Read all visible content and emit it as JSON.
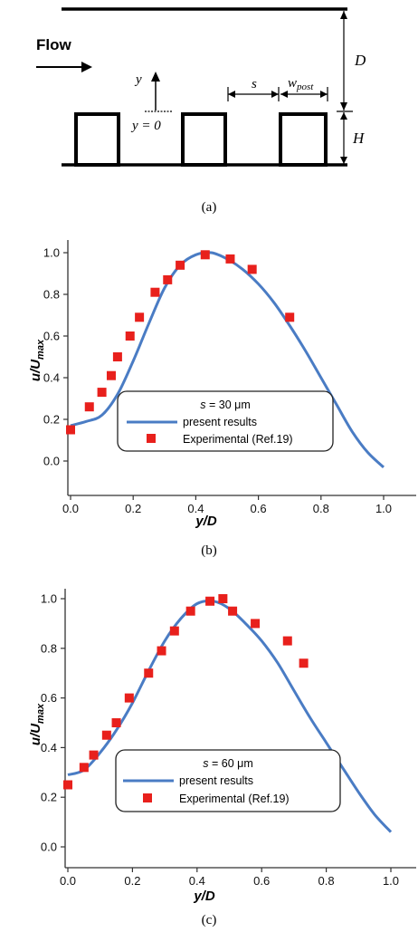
{
  "schematic": {
    "flow_label": "Flow",
    "y_axis_label": "y",
    "y_zero_label": "y = 0",
    "s_label": "s",
    "w_label": "w",
    "w_sub": "post",
    "D_label": "D",
    "H_label": "H"
  },
  "captions": {
    "a": "(a)",
    "b": "(b)",
    "c": "(c)"
  },
  "colors": {
    "curve": "#4a7cc4",
    "marker": "#e8201c",
    "axis": "#333333"
  },
  "chart_data": [
    {
      "type": "line",
      "panel": "b",
      "xlabel": "y/D",
      "ylabel_main": "u/U",
      "ylabel_sub": "max",
      "xlim": [
        0.0,
        1.0
      ],
      "ylim": [
        0.0,
        1.0
      ],
      "x_ticks": [
        "0.0",
        "0.2",
        "0.4",
        "0.6",
        "0.8",
        "1.0"
      ],
      "y_ticks": [
        "0.0",
        "0.2",
        "0.4",
        "0.6",
        "0.8",
        "1.0"
      ],
      "legend": {
        "title_prefix": "s",
        "title_suffix": " = 30 μm",
        "entries": [
          "present results",
          "Experimental (Ref.19)"
        ]
      },
      "series": [
        {
          "name": "present results",
          "kind": "line",
          "x": [
            0.0,
            0.05,
            0.1,
            0.15,
            0.2,
            0.25,
            0.3,
            0.35,
            0.4,
            0.45,
            0.5,
            0.55,
            0.6,
            0.65,
            0.7,
            0.75,
            0.8,
            0.85,
            0.9,
            0.95,
            1.0
          ],
          "y": [
            0.17,
            0.19,
            0.22,
            0.32,
            0.48,
            0.66,
            0.83,
            0.94,
            0.99,
            1.0,
            0.97,
            0.92,
            0.85,
            0.76,
            0.65,
            0.53,
            0.4,
            0.27,
            0.14,
            0.04,
            -0.03
          ]
        },
        {
          "name": "Experimental (Ref.19)",
          "kind": "marker",
          "x": [
            0.0,
            0.06,
            0.1,
            0.13,
            0.15,
            0.19,
            0.22,
            0.27,
            0.31,
            0.35,
            0.43,
            0.51,
            0.58,
            0.7
          ],
          "y": [
            0.15,
            0.26,
            0.33,
            0.41,
            0.5,
            0.6,
            0.69,
            0.81,
            0.87,
            0.94,
            0.99,
            0.97,
            0.92,
            0.69
          ]
        }
      ]
    },
    {
      "type": "line",
      "panel": "c",
      "xlabel": "y/D",
      "ylabel_main": "u/U",
      "ylabel_sub": "max",
      "xlim": [
        0.0,
        1.0
      ],
      "ylim": [
        0.0,
        1.0
      ],
      "x_ticks": [
        "0.0",
        "0.2",
        "0.4",
        "0.6",
        "0.8",
        "1.0"
      ],
      "y_ticks": [
        "0.0",
        "0.2",
        "0.4",
        "0.6",
        "0.8",
        "1.0"
      ],
      "legend": {
        "title_prefix": "s",
        "title_suffix": " = 60 μm",
        "entries": [
          "present results",
          "Experimental (Ref.19)"
        ]
      },
      "series": [
        {
          "name": "present results",
          "kind": "line",
          "x": [
            0.0,
            0.05,
            0.1,
            0.15,
            0.2,
            0.25,
            0.3,
            0.35,
            0.4,
            0.45,
            0.5,
            0.55,
            0.6,
            0.65,
            0.7,
            0.75,
            0.8,
            0.85,
            0.9,
            0.95,
            1.0
          ],
          "y": [
            0.29,
            0.31,
            0.38,
            0.47,
            0.58,
            0.71,
            0.83,
            0.92,
            0.98,
            0.99,
            0.96,
            0.9,
            0.83,
            0.74,
            0.63,
            0.52,
            0.42,
            0.32,
            0.22,
            0.13,
            0.06
          ]
        },
        {
          "name": "Experimental (Ref.19)",
          "kind": "marker",
          "x": [
            0.0,
            0.05,
            0.08,
            0.12,
            0.15,
            0.19,
            0.25,
            0.29,
            0.33,
            0.38,
            0.44,
            0.48,
            0.51,
            0.58,
            0.68,
            0.73
          ],
          "y": [
            0.25,
            0.32,
            0.37,
            0.45,
            0.5,
            0.6,
            0.7,
            0.79,
            0.87,
            0.95,
            0.99,
            1.0,
            0.95,
            0.9,
            0.83,
            0.74
          ]
        }
      ]
    }
  ]
}
